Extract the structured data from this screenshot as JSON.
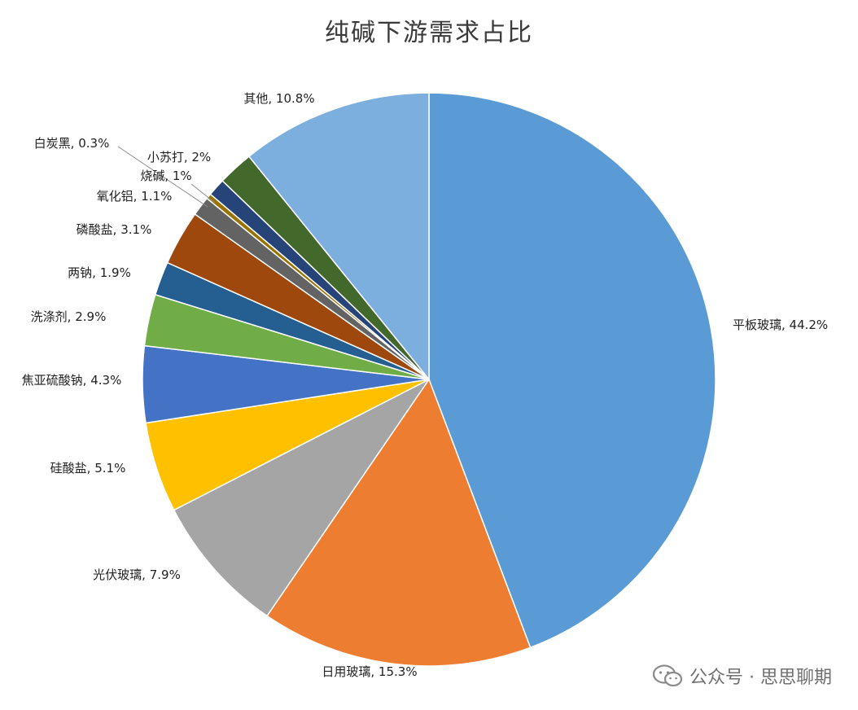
{
  "chart_data": {
    "type": "pie",
    "title": "纯碱下游需求占比",
    "start_angle_deg": 0,
    "direction": "clockwise",
    "slices": [
      {
        "label": "平板玻璃",
        "value": 44.2,
        "display": "44.2%",
        "color": "#5B9BD5"
      },
      {
        "label": "日用玻璃",
        "value": 15.3,
        "display": "15.3%",
        "color": "#ED7D31"
      },
      {
        "label": "光伏玻璃",
        "value": 7.9,
        "display": "7.9%",
        "color": "#A5A5A5"
      },
      {
        "label": "硅酸盐",
        "value": 5.1,
        "display": "5.1%",
        "color": "#FFC000"
      },
      {
        "label": "焦亚硫酸钠",
        "value": 4.3,
        "display": "4.3%",
        "color": "#4472C4"
      },
      {
        "label": "洗涤剂",
        "value": 2.9,
        "display": "2.9%",
        "color": "#70AD47"
      },
      {
        "label": "两钠",
        "value": 1.9,
        "display": "1.9%",
        "color": "#255E91"
      },
      {
        "label": "磷酸盐",
        "value": 3.1,
        "display": "3.1%",
        "color": "#9E480E"
      },
      {
        "label": "氧化铝",
        "value": 1.1,
        "display": "1.1%",
        "color": "#636363"
      },
      {
        "label": "白炭黑",
        "value": 0.3,
        "display": "0.3%",
        "color": "#997300"
      },
      {
        "label": "烧碱",
        "value": 1.0,
        "display": "1%",
        "color": "#264478"
      },
      {
        "label": "小苏打",
        "value": 2.0,
        "display": "2%",
        "color": "#43682B"
      },
      {
        "label": "其他",
        "value": 10.8,
        "display": "10.8%",
        "color": "#7CAFDD"
      }
    ]
  },
  "watermark": {
    "text": "公众号 · 思思聊期",
    "icon": "wechat-icon"
  }
}
